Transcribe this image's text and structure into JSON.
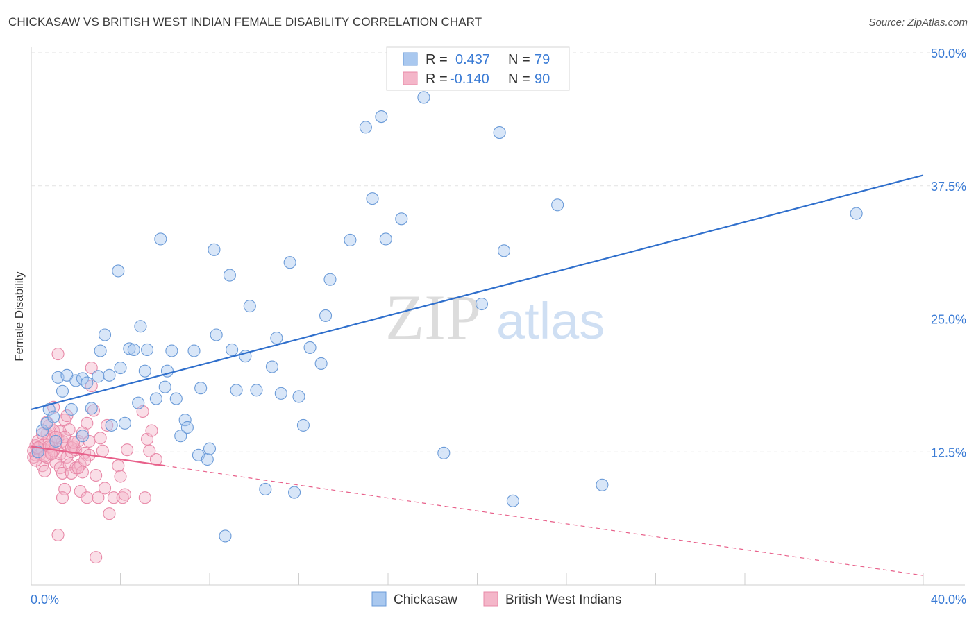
{
  "header": {
    "title": "CHICKASAW VS BRITISH WEST INDIAN FEMALE DISABILITY CORRELATION CHART",
    "source": "Source: ZipAtlas.com"
  },
  "watermark": {
    "zip": "ZIP",
    "atlas": "atlas"
  },
  "colors": {
    "chickasaw_fill": "#a9c8ef",
    "chickasaw_stroke": "#6b9bd8",
    "chickasaw_line": "#2f6fcc",
    "bwi_fill": "#f4b6c9",
    "bwi_stroke": "#e889a8",
    "bwi_line": "#e8608a",
    "axis_text": "#3a7bd5"
  },
  "legend": {
    "r_label": "R =",
    "n_label": "N =",
    "series": [
      {
        "name": "Chickasaw",
        "r": "0.437",
        "n": "79"
      },
      {
        "name": "British West Indians",
        "r": "-0.140",
        "n": "90"
      }
    ]
  },
  "chart_data": {
    "type": "scatter",
    "title": "CHICKASAW VS BRITISH WEST INDIAN FEMALE DISABILITY CORRELATION CHART",
    "xlabel": "",
    "ylabel": "Female Disability",
    "xlim": [
      0,
      40
    ],
    "ylim": [
      0,
      50
    ],
    "x_tick_labels": [
      "0.0%",
      "40.0%"
    ],
    "y_ticks": [
      12.5,
      25.0,
      37.5,
      50.0
    ],
    "y_tick_labels": [
      "12.5%",
      "25.0%",
      "37.5%",
      "50.0%"
    ],
    "grid": true,
    "series": [
      {
        "name": "Chickasaw",
        "trend": {
          "x": [
            0,
            40
          ],
          "y": [
            16.5,
            38.5
          ],
          "style": "solid"
        },
        "points": [
          [
            0.5,
            14.5
          ],
          [
            0.7,
            15.2
          ],
          [
            0.8,
            16.5
          ],
          [
            1.0,
            15.8
          ],
          [
            1.2,
            19.5
          ],
          [
            1.4,
            18.2
          ],
          [
            1.6,
            19.7
          ],
          [
            1.8,
            16.5
          ],
          [
            2.0,
            19.2
          ],
          [
            2.3,
            19.4
          ],
          [
            2.3,
            14.0
          ],
          [
            2.5,
            19.0
          ],
          [
            2.7,
            16.6
          ],
          [
            3.0,
            19.6
          ],
          [
            3.1,
            22.0
          ],
          [
            3.3,
            23.5
          ],
          [
            3.5,
            19.7
          ],
          [
            3.6,
            15.0
          ],
          [
            3.9,
            29.5
          ],
          [
            4.0,
            20.4
          ],
          [
            4.2,
            15.2
          ],
          [
            4.4,
            22.2
          ],
          [
            4.6,
            22.1
          ],
          [
            4.8,
            17.1
          ],
          [
            4.9,
            24.3
          ],
          [
            5.1,
            20.1
          ],
          [
            5.2,
            22.1
          ],
          [
            5.6,
            17.5
          ],
          [
            5.8,
            32.5
          ],
          [
            6.0,
            18.6
          ],
          [
            6.1,
            20.1
          ],
          [
            6.3,
            22.0
          ],
          [
            6.5,
            17.5
          ],
          [
            6.7,
            14.0
          ],
          [
            6.9,
            15.5
          ],
          [
            7.0,
            14.8
          ],
          [
            7.3,
            22.0
          ],
          [
            7.5,
            12.2
          ],
          [
            7.6,
            18.5
          ],
          [
            7.9,
            11.8
          ],
          [
            8.0,
            12.8
          ],
          [
            8.2,
            31.5
          ],
          [
            8.3,
            23.5
          ],
          [
            8.7,
            4.6
          ],
          [
            8.9,
            29.1
          ],
          [
            9.0,
            22.1
          ],
          [
            9.2,
            18.3
          ],
          [
            9.6,
            21.5
          ],
          [
            9.8,
            26.2
          ],
          [
            10.1,
            18.3
          ],
          [
            10.5,
            9.0
          ],
          [
            10.8,
            20.5
          ],
          [
            11.0,
            23.2
          ],
          [
            11.2,
            18.0
          ],
          [
            11.6,
            30.3
          ],
          [
            11.8,
            8.7
          ],
          [
            12.0,
            17.7
          ],
          [
            12.2,
            15.0
          ],
          [
            12.5,
            22.3
          ],
          [
            13.0,
            20.8
          ],
          [
            13.2,
            25.3
          ],
          [
            13.4,
            28.7
          ],
          [
            14.3,
            32.4
          ],
          [
            15.0,
            43.0
          ],
          [
            15.3,
            36.3
          ],
          [
            15.7,
            44.0
          ],
          [
            15.9,
            32.5
          ],
          [
            16.6,
            34.4
          ],
          [
            17.6,
            45.8
          ],
          [
            18.5,
            12.4
          ],
          [
            20.2,
            26.4
          ],
          [
            21.0,
            42.5
          ],
          [
            21.2,
            31.4
          ],
          [
            21.6,
            7.9
          ],
          [
            23.6,
            35.7
          ],
          [
            25.6,
            9.4
          ],
          [
            37.0,
            34.9
          ],
          [
            0.3,
            12.5
          ],
          [
            1.1,
            13.5
          ]
        ]
      },
      {
        "name": "British West Indians",
        "trend": {
          "x": [
            0,
            6
          ],
          "y": [
            13.0,
            11.2
          ],
          "style": "solid"
        },
        "trend_extension": {
          "x": [
            6,
            40
          ],
          "y": [
            11.2,
            0.9
          ],
          "style": "dashed"
        },
        "points": [
          [
            0.1,
            12.0
          ],
          [
            0.1,
            12.6
          ],
          [
            0.2,
            13.1
          ],
          [
            0.2,
            12.2
          ],
          [
            0.3,
            13.5
          ],
          [
            0.3,
            12.8
          ],
          [
            0.4,
            12.3
          ],
          [
            0.4,
            13.0
          ],
          [
            0.5,
            11.2
          ],
          [
            0.5,
            12.7
          ],
          [
            0.6,
            13.3
          ],
          [
            0.6,
            10.7
          ],
          [
            0.7,
            12.0
          ],
          [
            0.7,
            14.2
          ],
          [
            0.8,
            13.7
          ],
          [
            0.8,
            15.0
          ],
          [
            0.9,
            13.0
          ],
          [
            0.9,
            12.4
          ],
          [
            1.0,
            16.7
          ],
          [
            1.0,
            14.5
          ],
          [
            1.1,
            13.2
          ],
          [
            1.1,
            11.5
          ],
          [
            1.2,
            21.7
          ],
          [
            1.2,
            13.8
          ],
          [
            1.3,
            11.0
          ],
          [
            1.3,
            12.3
          ],
          [
            1.4,
            10.5
          ],
          [
            1.4,
            13.5
          ],
          [
            1.5,
            15.5
          ],
          [
            1.5,
            9.0
          ],
          [
            1.6,
            12.0
          ],
          [
            1.6,
            13.2
          ],
          [
            1.7,
            11.3
          ],
          [
            1.7,
            14.6
          ],
          [
            1.8,
            12.5
          ],
          [
            1.8,
            10.5
          ],
          [
            1.9,
            13.0
          ],
          [
            2.0,
            12.7
          ],
          [
            2.0,
            11.0
          ],
          [
            2.1,
            13.5
          ],
          [
            2.2,
            11.3
          ],
          [
            2.2,
            8.8
          ],
          [
            2.3,
            10.6
          ],
          [
            2.4,
            12.4
          ],
          [
            2.5,
            15.2
          ],
          [
            2.6,
            13.5
          ],
          [
            2.7,
            18.7
          ],
          [
            2.8,
            16.4
          ],
          [
            3.0,
            8.2
          ],
          [
            3.1,
            13.8
          ],
          [
            3.2,
            12.6
          ],
          [
            3.4,
            15.0
          ],
          [
            3.5,
            6.7
          ],
          [
            3.7,
            8.2
          ],
          [
            3.9,
            11.2
          ],
          [
            4.0,
            10.2
          ],
          [
            4.1,
            8.2
          ],
          [
            4.2,
            8.5
          ],
          [
            4.3,
            12.7
          ],
          [
            5.0,
            16.3
          ],
          [
            5.1,
            8.2
          ],
          [
            5.2,
            13.7
          ],
          [
            5.4,
            14.5
          ],
          [
            5.6,
            11.8
          ],
          [
            0.2,
            11.7
          ],
          [
            0.3,
            12.9
          ],
          [
            0.5,
            14.2
          ],
          [
            0.6,
            12.1
          ],
          [
            0.7,
            15.3
          ],
          [
            0.8,
            13.0
          ],
          [
            1.0,
            12.6
          ],
          [
            1.2,
            4.7
          ],
          [
            1.3,
            14.4
          ],
          [
            1.4,
            8.2
          ],
          [
            1.5,
            13.9
          ],
          [
            1.6,
            15.9
          ],
          [
            1.8,
            12.9
          ],
          [
            1.9,
            13.4
          ],
          [
            2.1,
            11.0
          ],
          [
            2.3,
            14.3
          ],
          [
            2.5,
            8.2
          ],
          [
            2.6,
            12.2
          ],
          [
            2.7,
            20.4
          ],
          [
            2.9,
            10.3
          ],
          [
            2.9,
            2.6
          ],
          [
            3.3,
            9.1
          ],
          [
            1.1,
            13.9
          ],
          [
            0.9,
            12.3
          ],
          [
            5.3,
            12.6
          ],
          [
            2.4,
            11.7
          ]
        ]
      }
    ]
  }
}
